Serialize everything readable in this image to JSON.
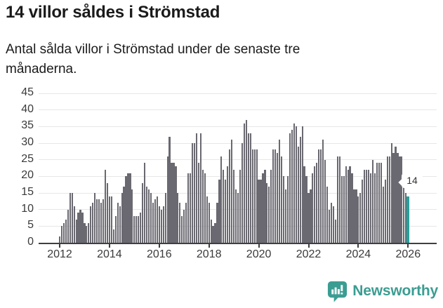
{
  "header": {
    "title": "14 villor såldes i Strömstad",
    "subtitle": "Antal sålda villor i Strömstad under de senaste tre månaderna."
  },
  "chart_data": {
    "type": "bar",
    "title": "14 villor såldes i Strömstad",
    "xlabel": "",
    "ylabel": "",
    "ylim": [
      0,
      45
    ],
    "grid": true,
    "y_ticks": [
      0,
      5,
      10,
      15,
      20,
      25,
      30,
      35,
      40,
      45
    ],
    "x_tick_years": [
      2012,
      2014,
      2016,
      2018,
      2020,
      2022,
      2024,
      2026
    ],
    "start": "2012-01",
    "frequency": "monthly",
    "values": [
      2,
      5,
      6,
      7,
      10,
      15,
      15,
      11,
      7,
      9,
      10,
      9,
      6,
      5,
      6,
      11,
      12,
      15,
      13,
      13,
      12,
      13,
      22,
      18,
      14,
      14,
      4,
      8,
      12,
      11,
      15,
      17,
      20,
      21,
      21,
      16,
      8,
      8,
      8,
      9,
      18,
      24,
      17,
      16,
      15,
      12,
      13,
      14,
      11,
      10,
      11,
      15,
      26,
      32,
      24,
      24,
      23,
      15,
      12,
      8,
      10,
      12,
      21,
      21,
      30,
      30,
      33,
      24,
      33,
      22,
      21,
      14,
      12,
      7,
      5,
      6,
      12,
      19,
      26,
      22,
      19,
      23,
      28,
      31,
      22,
      16,
      15,
      22,
      30,
      36,
      37,
      33,
      33,
      28,
      28,
      28,
      19,
      19,
      21,
      22,
      18,
      17,
      22,
      28,
      28,
      27,
      31,
      26,
      20,
      16,
      20,
      33,
      34,
      36,
      35,
      29,
      32,
      35,
      23,
      20,
      15,
      16,
      21,
      23,
      24,
      28,
      28,
      31,
      25,
      17,
      10,
      12,
      11,
      7,
      26,
      26,
      20,
      20,
      23,
      22,
      23,
      21,
      16,
      16,
      14,
      15,
      19,
      22,
      22,
      22,
      21,
      25,
      21,
      24,
      24,
      24,
      17,
      19,
      26,
      26,
      30,
      27,
      29,
      27,
      26,
      26,
      17,
      15,
      14
    ],
    "highlight": {
      "index": 168,
      "value": 14,
      "label": "14",
      "color": "#23a29d"
    },
    "bar_color": "#6a6971",
    "axis_color": "#3f3f3f",
    "gridline_color": "#e7e7e7",
    "legend": null
  },
  "footer": {
    "brand": "Newsworthy",
    "logo_icon": "newsworthy-speech-bubble-chart-icon",
    "brand_color": "#3b9d92"
  }
}
